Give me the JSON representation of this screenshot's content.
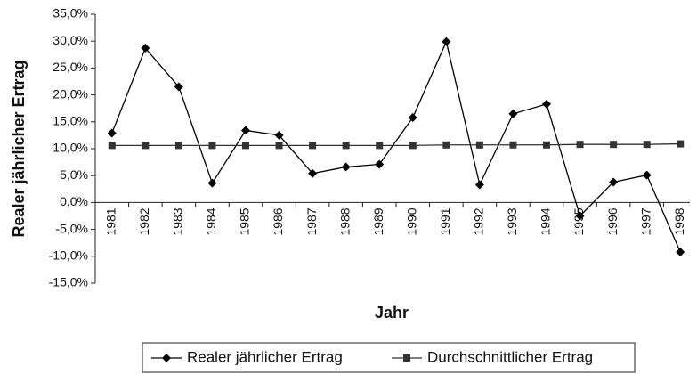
{
  "chart_data": {
    "type": "line",
    "y_label": "Realer jährlicher Ertrag",
    "x_label": "Jahr",
    "categories": [
      "1981",
      "1982",
      "1983",
      "1984",
      "1985",
      "1986",
      "1987",
      "1988",
      "1989",
      "1990",
      "1991",
      "1992",
      "1993",
      "1994",
      "1995",
      "1996",
      "1997",
      "1998"
    ],
    "series": [
      {
        "name": "Realer jährlicher Ertrag",
        "color": "#000000",
        "marker": "diamond",
        "values": [
          12.9,
          28.7,
          21.5,
          3.6,
          13.4,
          12.5,
          5.4,
          6.6,
          7.1,
          15.8,
          29.9,
          3.3,
          16.5,
          18.3,
          -2.5,
          3.8,
          5.1,
          -9.2
        ]
      },
      {
        "name": "Durchschnittlicher Ertrag",
        "color": "#333333",
        "marker": "square",
        "values": [
          10.6,
          10.6,
          10.6,
          10.6,
          10.6,
          10.6,
          10.6,
          10.6,
          10.6,
          10.6,
          10.7,
          10.7,
          10.7,
          10.7,
          10.8,
          10.8,
          10.8,
          10.9
        ]
      }
    ],
    "ylim": [
      -15,
      35
    ],
    "yticks": [
      {
        "value": -15,
        "label": "-15,0%"
      },
      {
        "value": -10,
        "label": "-10,0%"
      },
      {
        "value": -5,
        "label": "-5,0%"
      },
      {
        "value": 0,
        "label": "0,0%"
      },
      {
        "value": 5,
        "label": "5,0%"
      },
      {
        "value": 10,
        "label": "10,0%"
      },
      {
        "value": 15,
        "label": "15,0%"
      },
      {
        "value": 20,
        "label": "20,0%"
      },
      {
        "value": 25,
        "label": "25,0%"
      },
      {
        "value": 30,
        "label": "30,0%"
      },
      {
        "value": 35,
        "label": "35,0%"
      }
    ],
    "grid": false,
    "legend": "bottom"
  }
}
